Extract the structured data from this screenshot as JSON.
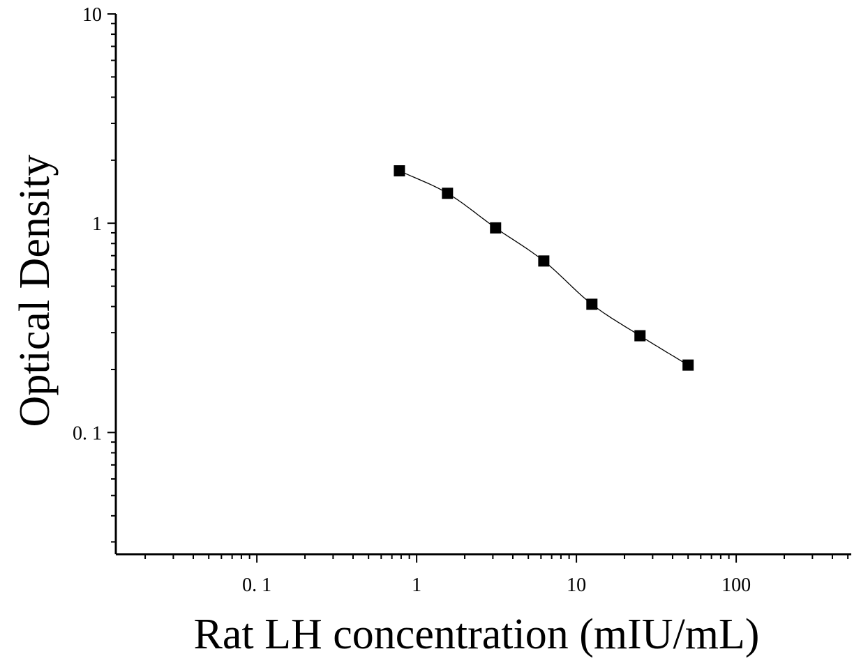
{
  "chart_data": {
    "type": "scatter",
    "title": "",
    "xlabel": "Rat LH concentration (mIU/mL)",
    "ylabel": "Optical Density",
    "xscale": "log",
    "yscale": "log",
    "xlim": [
      0.0131,
      525
    ],
    "ylim": [
      0.0262,
      10
    ],
    "xticks": [
      {
        "value": 0.1,
        "label": "0. 1"
      },
      {
        "value": 1,
        "label": "1"
      },
      {
        "value": 10,
        "label": "10"
      },
      {
        "value": 100,
        "label": "100"
      }
    ],
    "yticks": [
      {
        "value": 0.1,
        "label": "0. 1"
      },
      {
        "value": 1,
        "label": "1"
      },
      {
        "value": 10,
        "label": "10"
      }
    ],
    "grid": false,
    "legend": "none",
    "marker": "square",
    "fit_line": "smooth curve through points",
    "color": "#000000",
    "series": [
      {
        "x": [
          0.78,
          1.56,
          3.12,
          6.25,
          12.5,
          25,
          50
        ],
        "y": [
          1.78,
          1.39,
          0.95,
          0.66,
          0.41,
          0.29,
          0.21
        ]
      }
    ]
  }
}
